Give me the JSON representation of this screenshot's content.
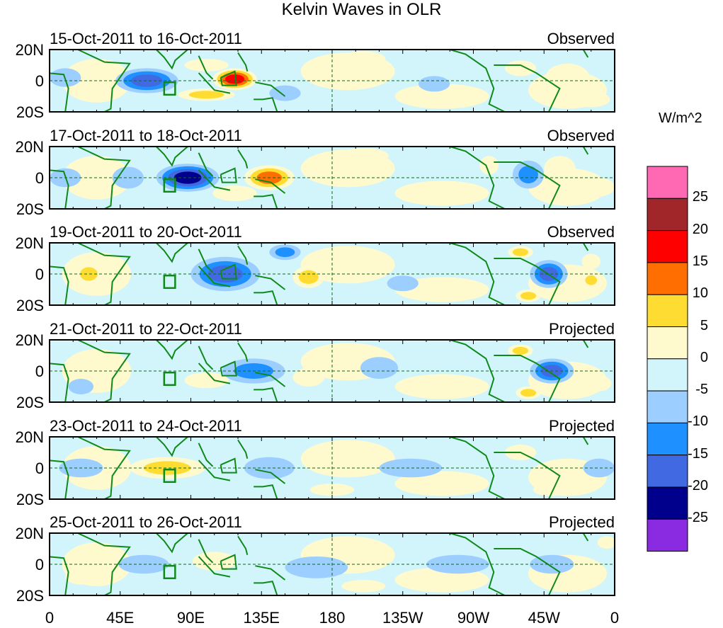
{
  "title": "Kelvin Waves in OLR",
  "units": "W/m^2",
  "lat_labels": [
    "20N",
    "0",
    "20S"
  ],
  "lon_labels": [
    "0",
    "45E",
    "90E",
    "135E",
    "180",
    "135W",
    "90W",
    "45W",
    "0"
  ],
  "colorbar": {
    "labels": [
      "25",
      "20",
      "15",
      "10",
      "5",
      "0",
      "-5",
      "-10",
      "-15",
      "-20",
      "-25"
    ],
    "colors": [
      "#ff69b4",
      "#a0262a",
      "#ff0000",
      "#ff6e00",
      "#ffdc32",
      "#fffacd",
      "#d2f5fc",
      "#9ccfff",
      "#1e90ff",
      "#4169e1",
      "#00008c",
      "#8a2be2"
    ]
  },
  "panels": [
    {
      "date": "15-Oct-2011 to 16-Oct-2011",
      "type": "Observed",
      "anomalies": [
        [
          62,
          0,
          20,
          8,
          -16
        ],
        [
          118,
          1,
          14,
          7,
          22
        ],
        [
          100,
          -9,
          18,
          4,
          12
        ],
        [
          100,
          10,
          14,
          4,
          8
        ],
        [
          28,
          0,
          8,
          9,
          6
        ],
        [
          150,
          -8,
          10,
          5,
          -6
        ],
        [
          200,
          14,
          14,
          5,
          5
        ],
        [
          330,
          2,
          14,
          9,
          8
        ],
        [
          300,
          8,
          10,
          5,
          6
        ],
        [
          10,
          2,
          10,
          6,
          -6
        ],
        [
          245,
          -2,
          10,
          5,
          -5
        ],
        [
          345,
          -12,
          12,
          5,
          6
        ]
      ]
    },
    {
      "date": "17-Oct-2011 to 18-Oct-2011",
      "type": "Observed",
      "anomalies": [
        [
          88,
          0,
          20,
          9,
          -22
        ],
        [
          140,
          0,
          16,
          8,
          18
        ],
        [
          118,
          -10,
          14,
          5,
          8
        ],
        [
          50,
          0,
          10,
          7,
          -8
        ],
        [
          200,
          14,
          16,
          5,
          6
        ],
        [
          305,
          2,
          10,
          9,
          -12
        ],
        [
          325,
          6,
          10,
          8,
          8
        ],
        [
          350,
          -6,
          10,
          6,
          6
        ],
        [
          10,
          0,
          10,
          6,
          -6
        ],
        [
          280,
          8,
          6,
          6,
          8
        ]
      ]
    },
    {
      "date": "19-Oct-2011 to 20-Oct-2011",
      "type": "Observed",
      "anomalies": [
        [
          112,
          0,
          22,
          11,
          -18
        ],
        [
          150,
          14,
          10,
          5,
          -10
        ],
        [
          165,
          -2,
          10,
          7,
          10
        ],
        [
          25,
          0,
          9,
          7,
          12
        ],
        [
          195,
          2,
          10,
          8,
          6
        ],
        [
          300,
          14,
          8,
          4,
          14
        ],
        [
          305,
          -14,
          8,
          4,
          14
        ],
        [
          318,
          0,
          12,
          9,
          -16
        ],
        [
          345,
          -4,
          6,
          5,
          10
        ],
        [
          345,
          8,
          6,
          5,
          6
        ],
        [
          225,
          -6,
          10,
          5,
          -6
        ]
      ]
    },
    {
      "date": "21-Oct-2011 to 22-Oct-2011",
      "type": "Projected",
      "anomalies": [
        [
          130,
          0,
          20,
          8,
          -14
        ],
        [
          40,
          0,
          12,
          8,
          6
        ],
        [
          165,
          -4,
          10,
          6,
          8
        ],
        [
          100,
          -6,
          14,
          5,
          6
        ],
        [
          210,
          2,
          12,
          7,
          -5
        ],
        [
          320,
          0,
          14,
          8,
          -16
        ],
        [
          300,
          13,
          8,
          4,
          12
        ],
        [
          305,
          -14,
          8,
          4,
          12
        ],
        [
          350,
          -8,
          8,
          5,
          6
        ],
        [
          20,
          -10,
          8,
          5,
          -6
        ]
      ]
    },
    {
      "date": "23-Oct-2011 to 24-Oct-2011",
      "type": "Projected",
      "anomalies": [
        [
          75,
          0,
          24,
          7,
          10
        ],
        [
          140,
          0,
          16,
          7,
          -6
        ],
        [
          20,
          0,
          14,
          6,
          -6
        ],
        [
          320,
          -14,
          12,
          4,
          8
        ],
        [
          300,
          10,
          10,
          5,
          6
        ],
        [
          350,
          0,
          10,
          6,
          -6
        ],
        [
          230,
          0,
          20,
          6,
          -3
        ],
        [
          180,
          -14,
          14,
          4,
          5
        ]
      ]
    },
    {
      "date": "25-Oct-2011 to 26-Oct-2011",
      "type": "Projected",
      "anomalies": [
        [
          105,
          2,
          14,
          6,
          8
        ],
        [
          60,
          0,
          16,
          6,
          -5
        ],
        [
          170,
          -2,
          20,
          7,
          -5
        ],
        [
          260,
          0,
          20,
          6,
          -4
        ],
        [
          320,
          0,
          14,
          6,
          -5
        ],
        [
          200,
          -14,
          14,
          4,
          5
        ],
        [
          20,
          -8,
          10,
          5,
          5
        ],
        [
          355,
          14,
          6,
          4,
          8
        ]
      ]
    }
  ]
}
